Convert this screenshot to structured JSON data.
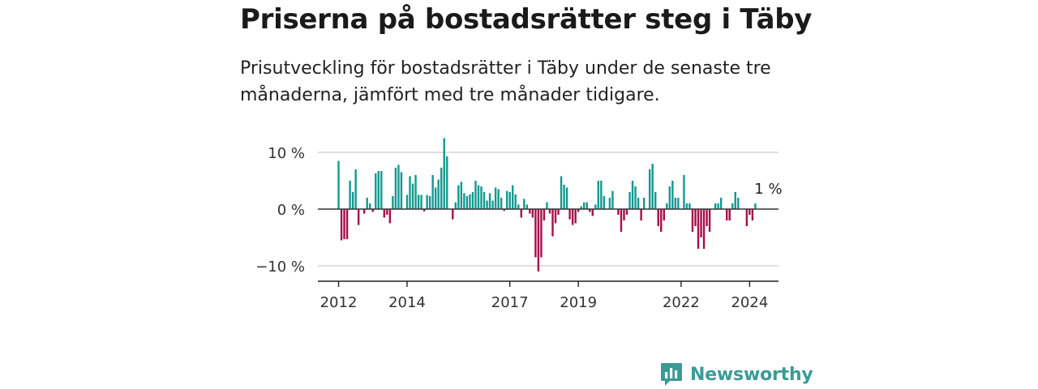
{
  "title": "Priserna på bostadsrätter steg i Täby",
  "subtitle": "Prisutveckling för bostadsrätter i Täby under de senaste tre månaderna, jämfört med tre månader tidigare.",
  "brand": {
    "name": "Newsworthy",
    "logo_icon": "newsworthy-logo-icon",
    "color": "#3a9b95"
  },
  "colors": {
    "positive": "#13998f",
    "negative": "#a60e4a",
    "zero_line": "#333333",
    "grid": "#d6d6d6"
  },
  "chart_data": {
    "type": "bar",
    "x_start": "2012-01",
    "frequency": "monthly",
    "ylim": [
      -12.5,
      13.5
    ],
    "yticks": [
      10,
      0,
      -10
    ],
    "ytick_labels": [
      "10 %",
      "0 %",
      "−10 %"
    ],
    "xticks": [
      "2012",
      "2014",
      "2017",
      "2019",
      "2022",
      "2024"
    ],
    "grid": true,
    "end_label": "1 %",
    "values": [
      8.5,
      -5.5,
      -5.3,
      -5.3,
      5.0,
      3.0,
      7.0,
      -2.8,
      0.0,
      -0.8,
      2.0,
      1.0,
      -0.5,
      6.3,
      6.7,
      6.7,
      -1.5,
      -1.0,
      -2.5,
      2.3,
      7.3,
      7.8,
      6.5,
      0.0,
      2.5,
      5.8,
      4.5,
      6.0,
      2.5,
      2.5,
      -0.4,
      2.5,
      2.3,
      6.0,
      3.8,
      5.2,
      7.3,
      12.5,
      9.3,
      0.0,
      -1.8,
      1.2,
      4.2,
      4.8,
      2.8,
      2.3,
      2.6,
      3.0,
      5.0,
      4.2,
      4.0,
      3.0,
      1.5,
      2.8,
      1.5,
      3.8,
      3.5,
      2.0,
      -0.3,
      3.2,
      3.0,
      4.2,
      2.6,
      0.8,
      -1.5,
      1.8,
      0.8,
      -0.8,
      -1.5,
      -8.5,
      -11.0,
      -8.5,
      -2.0,
      1.2,
      -0.8,
      -4.8,
      -2.5,
      -1.0,
      5.8,
      4.3,
      3.8,
      -1.8,
      -2.8,
      -2.5,
      -0.5,
      0.5,
      1.2,
      1.2,
      -0.5,
      -1.2,
      0.8,
      5.0,
      5.0,
      2.3,
      0.0,
      2.0,
      3.2,
      0.0,
      -1.0,
      -4.0,
      -2.0,
      -1.0,
      3.0,
      5.0,
      4.0,
      2.0,
      -2.0,
      2.0,
      0.0,
      7.0,
      8.0,
      3.0,
      -3.0,
      -4.0,
      -2.0,
      1.0,
      4.0,
      5.0,
      2.0,
      2.0,
      0.0,
      6.0,
      1.0,
      1.0,
      -4.0,
      -3.0,
      -7.0,
      -5.0,
      -7.0,
      -3.0,
      -4.0,
      0.0,
      1.0,
      1.0,
      2.0,
      0.0,
      -2.0,
      -2.0,
      1.0,
      3.0,
      2.0,
      0.0,
      0.0,
      -3.0,
      -1.0,
      -2.0,
      1.0
    ]
  }
}
